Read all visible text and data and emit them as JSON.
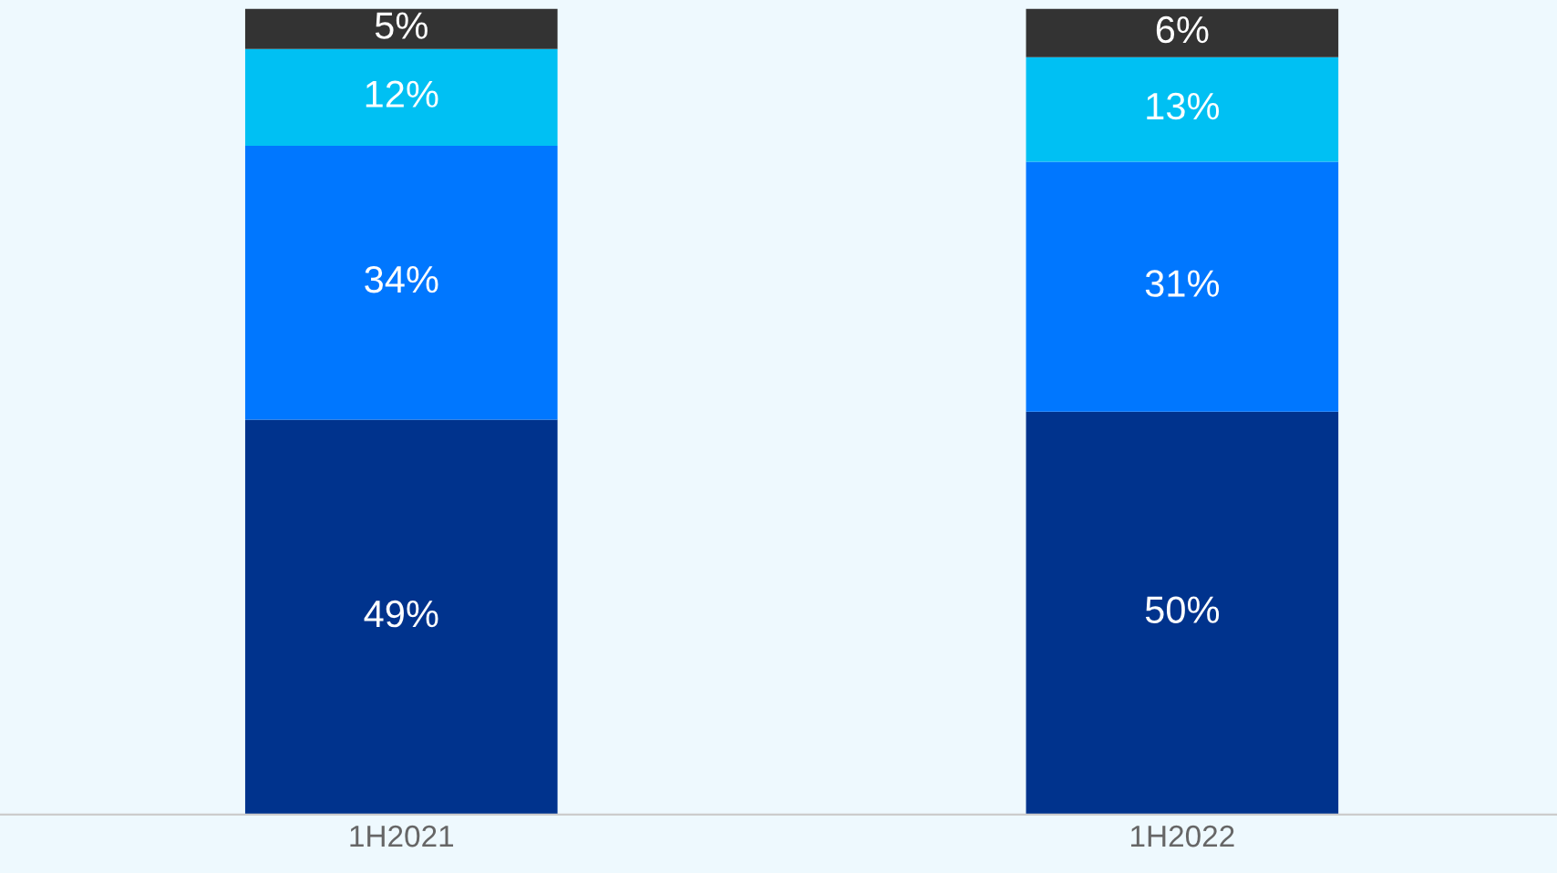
{
  "chart_data": {
    "type": "bar",
    "stacked": true,
    "categories": [
      "1H2021",
      "1H2022"
    ],
    "grid": false,
    "legend": false,
    "series": [
      {
        "color": "#00338d",
        "values": [
          49,
          50
        ],
        "value_labels": [
          "49%",
          "50%"
        ]
      },
      {
        "color": "#0077ff",
        "values": [
          34,
          31
        ],
        "value_labels": [
          "34%",
          "31%"
        ]
      },
      {
        "color": "#00c0f3",
        "values": [
          12,
          13
        ],
        "value_labels": [
          "12%",
          "13%"
        ]
      },
      {
        "color": "#333333",
        "values": [
          5,
          6
        ],
        "value_labels": [
          "5%",
          "6%"
        ]
      }
    ]
  }
}
